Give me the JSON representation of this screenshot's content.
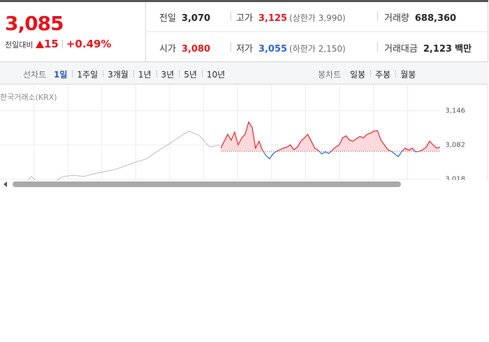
{
  "header": {
    "price": "3,085",
    "change_label": "전일대비",
    "change": "15",
    "change_rate": "+0.49%"
  },
  "stats": [
    {
      "label": "전일",
      "value": {
        "value": 3070,
        "label": "3,070"
      }
    },
    {
      "label": "고가",
      "value": "3,125",
      "note": "(상한가 3,990)"
    },
    {
      "label": "거래량",
      "value": "688,360"
    },
    {
      "label": "시가",
      "value": "3,080"
    },
    {
      "label": "저가",
      "value": "3,055",
      "note": "(하한가 2,150)"
    },
    {
      "label": "거래대금",
      "value": "2,123",
      "unit": "백만"
    }
  ],
  "tabs": {
    "line_label": "선차트",
    "line_periods": [
      "1일",
      "1주일",
      "3개월",
      "1년",
      "3년",
      "5년",
      "10년"
    ],
    "candle_label": "봉차트",
    "candle_periods": [
      "일봉",
      "주봉",
      "월봉"
    ]
  },
  "chart_data": {
    "type": "line",
    "source": "한국거래소(KRX)",
    "ylim": [
      2990,
      3160
    ],
    "yticks": [
      {
        "value": 3146,
        "label": "3,146"
      },
      {
        "value": 3082,
        "label": "3,082"
      },
      {
        "value": 3018,
        "label": "3,018"
      }
    ],
    "down_color": "#2a62c9",
    "area_color": "#fbd9dc",
    "series": [
      {
        "color": "#bbbbbb",
        "values": [
          3004,
          3002,
          3001,
          3023,
          3004,
          3010,
          3023,
          3025,
          3023,
          3028,
          3032,
          3036,
          3043,
          3050,
          3056,
          3070,
          3082,
          3095,
          3108,
          3100,
          3078,
          3082
        ]
      },
      {
        "color": "#e0202b",
        "values": [
          3076,
          3089,
          3102,
          3091,
          3106,
          3082,
          3095,
          3102,
          3125,
          3115,
          3076,
          3089,
          3072,
          3062,
          3056,
          3065,
          3070,
          3073,
          3076,
          3078,
          3082,
          3073,
          3078,
          3089,
          3095,
          3102,
          3089,
          3076,
          3072,
          3065,
          3069,
          3066,
          3072,
          3078,
          3082,
          3095,
          3099,
          3091,
          3089,
          3094,
          3098,
          3095,
          3102,
          3104,
          3108,
          3109,
          3091,
          3082,
          3073,
          3070,
          3065,
          3060,
          3070,
          3076,
          3072,
          3076,
          3069,
          3070,
          3073,
          3078,
          3089,
          3082,
          3076,
          3078
        ]
      }
    ]
  }
}
